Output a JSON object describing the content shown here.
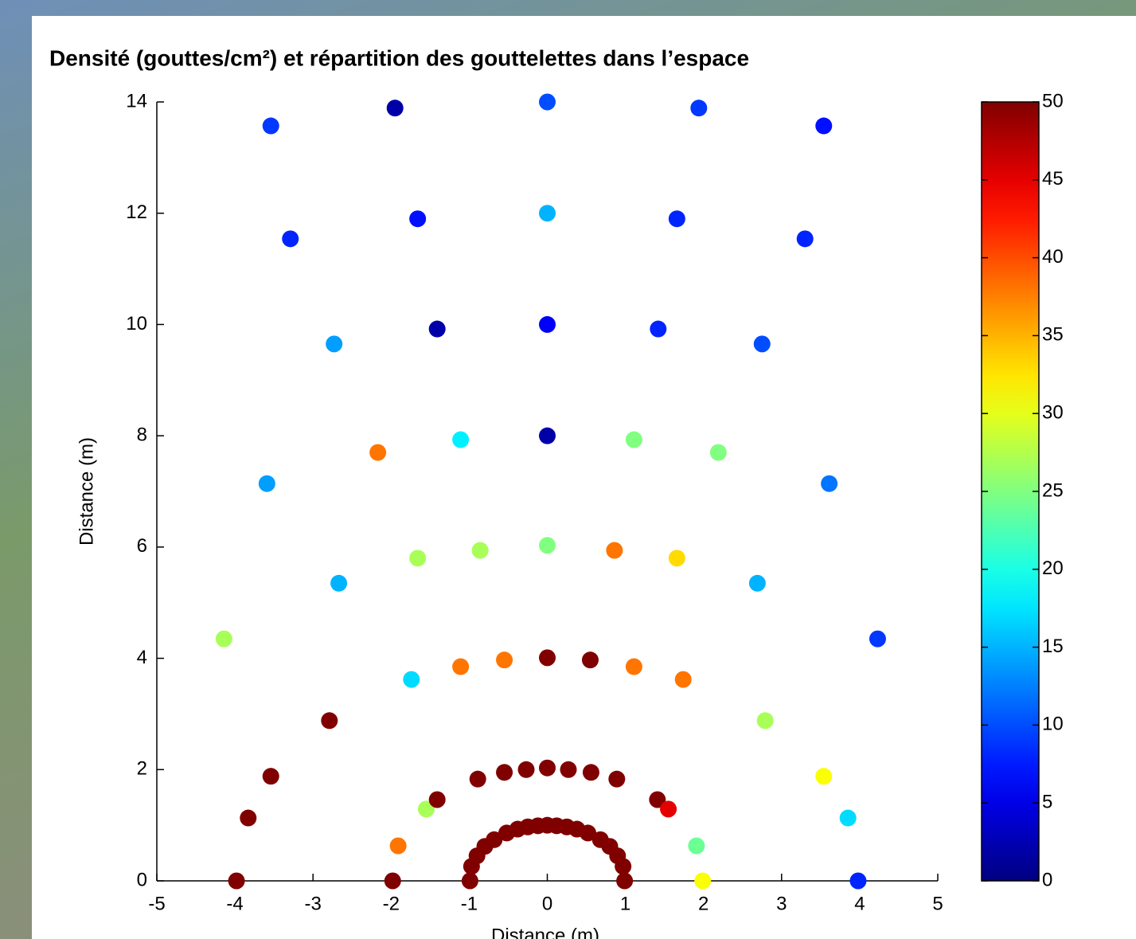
{
  "chart_data": {
    "type": "scatter",
    "title": "Densité (gouttes/cm²) et répartition des gouttelettes dans l’espace",
    "xlabel": "Distance (m)",
    "ylabel": "Distance (m)",
    "x": [
      -0.99,
      -0.97,
      -0.9,
      -0.8,
      -0.68,
      -0.52,
      -0.38,
      -0.25,
      -0.12,
      0,
      0.12,
      0.25,
      0.38,
      0.52,
      0.68,
      0.8,
      0.9,
      0.97,
      0.99,
      -1.98,
      -1.91,
      -1.55,
      -1.41,
      -0.89,
      -0.55,
      -0.27,
      0,
      0.27,
      0.56,
      0.89,
      1.41,
      1.55,
      1.91,
      1.99,
      -3.98,
      -3.83,
      -3.54,
      -2.79,
      2.79,
      3.54,
      3.85,
      3.98,
      -1.74,
      -1.11,
      -0.55,
      0,
      0.55,
      1.11,
      1.74,
      -4.14,
      4.23,
      -2.67,
      -1.66,
      -0.86,
      0,
      0.86,
      1.66,
      2.69,
      -3.59,
      3.61,
      -2.17,
      -1.11,
      0,
      1.11,
      2.19,
      -2.73,
      -1.41,
      0,
      1.42,
      2.75,
      -3.29,
      -1.66,
      0,
      1.66,
      3.3,
      -3.54,
      -1.95,
      0,
      1.94,
      3.54
    ],
    "y": [
      0,
      0.26,
      0.45,
      0.62,
      0.74,
      0.86,
      0.93,
      0.97,
      0.99,
      1,
      0.99,
      0.97,
      0.93,
      0.86,
      0.74,
      0.62,
      0.45,
      0.26,
      0,
      0,
      0.63,
      1.29,
      1.46,
      1.83,
      1.95,
      2,
      2.03,
      2,
      1.95,
      1.83,
      1.46,
      1.29,
      0.63,
      0,
      0,
      1.13,
      1.88,
      2.88,
      2.88,
      1.88,
      1.13,
      0,
      3.62,
      3.85,
      3.97,
      4.01,
      3.97,
      3.85,
      3.62,
      4.35,
      4.35,
      5.35,
      5.8,
      5.94,
      6.03,
      5.94,
      5.8,
      5.35,
      7.14,
      7.14,
      7.7,
      7.93,
      8,
      7.93,
      7.7,
      9.65,
      9.92,
      10,
      9.92,
      9.65,
      11.54,
      11.9,
      12,
      11.9,
      11.54,
      13.57,
      13.89,
      14,
      13.89,
      13.57
    ],
    "c": [
      50,
      50,
      50,
      50,
      50,
      50,
      50,
      50,
      50,
      50,
      50,
      50,
      50,
      50,
      50,
      50,
      50,
      50,
      50,
      50,
      38,
      27,
      50,
      50,
      50,
      50,
      50,
      50,
      50,
      50,
      50,
      45,
      24,
      31,
      50,
      50,
      50,
      50,
      27,
      31,
      17,
      8,
      17,
      38,
      38,
      50,
      50,
      38,
      38,
      27,
      9,
      15,
      27,
      27,
      25,
      38,
      33,
      15,
      14,
      12,
      38,
      18,
      2,
      25,
      25,
      14,
      2,
      6,
      8,
      10,
      8,
      7,
      15,
      8,
      8,
      9,
      2,
      10,
      9,
      7
    ],
    "xlim": [
      -5,
      5
    ],
    "ylim": [
      0,
      14
    ],
    "xticks": [
      -5,
      -4,
      -3,
      -2,
      -1,
      0,
      1,
      2,
      3,
      4,
      5
    ],
    "yticks": [
      0,
      2,
      4,
      6,
      8,
      10,
      12,
      14
    ],
    "colormap": "jet",
    "clim": [
      0,
      50
    ],
    "cticks": [
      0,
      5,
      10,
      15,
      20,
      25,
      30,
      35,
      40,
      45,
      50
    ]
  }
}
